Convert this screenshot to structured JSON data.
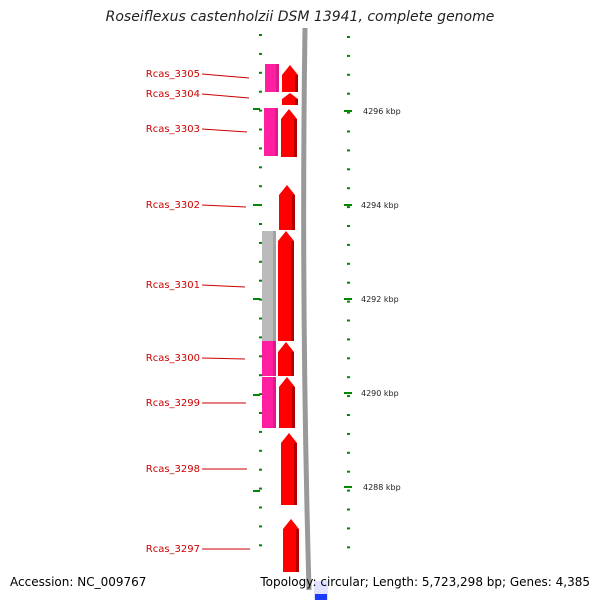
{
  "title": "Roseiflexus castenholzii DSM 13941, complete genome",
  "accession": "Accession: NC_009767",
  "summary": "Topology: circular; Length: 5,723,298 bp; Genes: 4,385",
  "colors": {
    "cds": "#ff0000",
    "cds_dark": "#b00000",
    "category_pink": "#ff1fa0",
    "category_grey": "#bbbbbb",
    "label": "#cc0000",
    "tick": "#008800",
    "backbone": "#999999",
    "bottom_marker": "#1a3cff"
  },
  "genes": [
    {
      "name": "Rcas_3305"
    },
    {
      "name": "Rcas_3304"
    },
    {
      "name": "Rcas_3303"
    },
    {
      "name": "Rcas_3302"
    },
    {
      "name": "Rcas_3301"
    },
    {
      "name": "Rcas_3300"
    },
    {
      "name": "Rcas_3299"
    },
    {
      "name": "Rcas_3298"
    },
    {
      "name": "Rcas_3297"
    }
  ],
  "positions": [
    "4296 kbp",
    "4294 kbp",
    "4292 kbp",
    "4290 kbp",
    "4288 kbp"
  ]
}
